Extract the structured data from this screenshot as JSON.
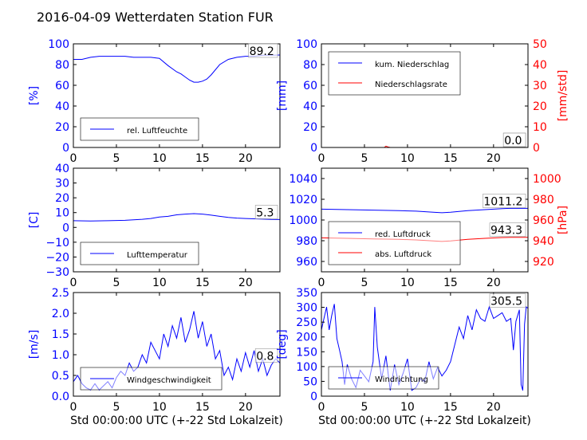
{
  "figure": {
    "title": "2016-04-09 Wetterdaten Station FUR"
  },
  "colors": {
    "series_blue": "#0000ff",
    "series_red": "#ff0000",
    "axis_blue": "#0000ff",
    "axis_red": "#ff0000",
    "text": "#000000",
    "spine": "#000000"
  },
  "chart_data": [
    {
      "id": "humidity",
      "type": "line",
      "xlim": [
        0,
        24
      ],
      "ylim": [
        0,
        100
      ],
      "ylabel": "[%]",
      "xticks": [
        "0",
        "5",
        "10",
        "15",
        "20"
      ],
      "yticks": [
        "0",
        "20",
        "40",
        "60",
        "80",
        "100"
      ],
      "legend": [
        "rel. Luftfeuchte"
      ],
      "legend_position": "bottom-left",
      "last_value_label": "89.2",
      "series": [
        {
          "name": "rel. Luftfeuchte",
          "color": "#0000ff",
          "x": [
            0,
            1,
            2,
            3,
            4,
            5,
            6,
            7,
            8,
            9,
            10,
            11,
            12,
            12.5,
            13,
            13.5,
            14,
            14.5,
            15,
            15.5,
            16,
            17,
            18,
            19,
            20,
            21,
            22,
            23,
            24
          ],
          "y": [
            85,
            85,
            87,
            88,
            88,
            88,
            88,
            87,
            87,
            87,
            86,
            79,
            73,
            71,
            68,
            65,
            63,
            63,
            64,
            66,
            70,
            80,
            85,
            87,
            88,
            88,
            89,
            89,
            89.2
          ]
        }
      ]
    },
    {
      "id": "precipitation",
      "type": "line",
      "xlim": [
        0,
        24
      ],
      "ylim": [
        0,
        100
      ],
      "ylabel": "[mm]",
      "y2lim": [
        0,
        50
      ],
      "y2label": "[mm/std]",
      "xticks": [
        "0",
        "5",
        "10",
        "15",
        "20"
      ],
      "yticks": [
        "0",
        "20",
        "40",
        "60",
        "80",
        "100"
      ],
      "y2ticks": [
        "0",
        "10",
        "20",
        "30",
        "40",
        "50"
      ],
      "legend": [
        "kum. Niederschlag",
        "Niederschlagsrate"
      ],
      "legend_position": "top-left",
      "last_value_label": "0.0",
      "last_value_label_2": "0.0",
      "series": [
        {
          "name": "kum. Niederschlag",
          "color": "#0000ff",
          "axis": "left",
          "x": [
            0,
            24
          ],
          "y": [
            0,
            0
          ]
        },
        {
          "name": "Niederschlagsrate",
          "color": "#ff0000",
          "axis": "right",
          "x": [
            0,
            7.3,
            7.5,
            7.7,
            8,
            24
          ],
          "y": [
            0,
            0,
            0.6,
            0.3,
            0,
            0
          ]
        }
      ]
    },
    {
      "id": "temperature",
      "type": "line",
      "xlim": [
        0,
        24
      ],
      "ylim": [
        -30,
        40
      ],
      "ylabel": "[C]",
      "xticks": [
        "0",
        "5",
        "10",
        "15",
        "20"
      ],
      "yticks": [
        "−30",
        "−20",
        "−10",
        "0",
        "10",
        "20",
        "30",
        "40"
      ],
      "legend": [
        "Lufttemperatur"
      ],
      "legend_position": "bottom-left",
      "last_value_label": "5.3",
      "series": [
        {
          "name": "Lufttemperatur",
          "color": "#0000ff",
          "x": [
            0,
            2,
            4,
            6,
            8,
            9,
            10,
            11,
            12,
            13,
            14,
            15,
            16,
            17,
            18,
            19,
            20,
            21,
            22,
            23,
            24
          ],
          "y": [
            4.5,
            4.3,
            4.5,
            4.8,
            5.5,
            6,
            7,
            7.5,
            8.5,
            9,
            9.3,
            9,
            8.3,
            7.5,
            6.8,
            6.3,
            6,
            5.8,
            5.6,
            5.4,
            5.3
          ]
        }
      ]
    },
    {
      "id": "pressure",
      "type": "line",
      "xlim": [
        0,
        24
      ],
      "ylim": [
        950,
        1050
      ],
      "ylabel": "",
      "y2lim": [
        910,
        1010
      ],
      "y2label": "[hPa]",
      "xticks": [
        "0",
        "5",
        "10",
        "15",
        "20"
      ],
      "yticks": [
        "960",
        "980",
        "1000",
        "1020",
        "1040"
      ],
      "y2ticks": [
        "920",
        "940",
        "960",
        "980",
        "1000"
      ],
      "legend": [
        "red. Luftdruck",
        "abs. Luftdruck"
      ],
      "legend_position": "bottom-left",
      "last_value_label": "1011.2",
      "last_value_label_2": "943.3",
      "series": [
        {
          "name": "red. Luftdruck",
          "color": "#0000ff",
          "axis": "left",
          "x": [
            0,
            3,
            6,
            9,
            11,
            13,
            14,
            15,
            17,
            19,
            21,
            22,
            24
          ],
          "y": [
            1010.5,
            1010,
            1009.5,
            1009,
            1008.5,
            1007.5,
            1007,
            1007.5,
            1009,
            1010,
            1011,
            1011.2,
            1011.2
          ]
        },
        {
          "name": "abs. Luftdruck",
          "color": "#ff0000",
          "axis": "right",
          "x": [
            0,
            3,
            6,
            9,
            11,
            13,
            14,
            15,
            17,
            19,
            21,
            22,
            24
          ],
          "y": [
            942.8,
            942.3,
            941.8,
            941.3,
            940.8,
            939.8,
            939.3,
            939.8,
            941.3,
            942.3,
            943.1,
            943.3,
            943.3
          ]
        }
      ]
    },
    {
      "id": "windspeed",
      "type": "line",
      "xlim": [
        0,
        24
      ],
      "ylim": [
        0,
        2.5
      ],
      "ylabel": "[m/s]",
      "xlabel": "Std 00:00:00 UTC (+-22 Std Lokalzeit)",
      "xticks": [
        "0",
        "5",
        "10",
        "15",
        "20"
      ],
      "yticks": [
        "0.0",
        "0.5",
        "1.0",
        "1.5",
        "2.0",
        "2.5"
      ],
      "legend": [
        "Windgeschwindigkeit"
      ],
      "legend_position": "bottom-center",
      "last_value_label": "0.8",
      "series": [
        {
          "name": "Windgeschwindigkeit",
          "color": "#0000ff",
          "x": [
            0,
            0.5,
            1,
            1.5,
            2,
            2.5,
            3,
            3.5,
            4,
            4.5,
            5,
            5.5,
            6,
            6.5,
            7,
            7.5,
            8,
            8.5,
            9,
            9.5,
            10,
            10.5,
            11,
            11.5,
            12,
            12.5,
            13,
            13.5,
            14,
            14.5,
            15,
            15.5,
            16,
            16.5,
            17,
            17.5,
            18,
            18.5,
            19,
            19.5,
            20,
            20.5,
            21,
            21.5,
            22,
            22.5,
            23,
            23.5,
            24
          ],
          "y": [
            0.35,
            0.5,
            0.3,
            0.2,
            0.15,
            0.3,
            0.15,
            0.25,
            0.35,
            0.2,
            0.45,
            0.6,
            0.5,
            0.8,
            0.6,
            0.7,
            1.0,
            0.8,
            1.3,
            1.1,
            0.9,
            1.5,
            1.2,
            1.7,
            1.4,
            1.9,
            1.3,
            1.6,
            2.05,
            1.4,
            1.8,
            1.2,
            1.5,
            0.9,
            1.1,
            0.5,
            0.7,
            0.4,
            0.9,
            0.6,
            1.05,
            0.7,
            1.1,
            0.6,
            0.9,
            0.5,
            0.75,
            0.9,
            0.8
          ]
        }
      ]
    },
    {
      "id": "winddirection",
      "type": "line",
      "xlim": [
        0,
        24
      ],
      "ylim": [
        0,
        360
      ],
      "ylabel": "[deg]",
      "xlabel": "Std 00:00:00 UTC (+-22 Std Lokalzeit)",
      "xticks": [
        "0",
        "5",
        "10",
        "15",
        "20"
      ],
      "yticks": [
        "0",
        "50",
        "100",
        "150",
        "200",
        "250",
        "300",
        "350"
      ],
      "legend": [
        "Windrichtung"
      ],
      "legend_position": "bottom-left",
      "last_value_label": "305.5",
      "series": [
        {
          "name": "Windrichtung",
          "color": "#0000ff",
          "x": [
            0,
            0.3,
            0.6,
            0.9,
            1.2,
            1.5,
            1.8,
            2.1,
            2.4,
            2.7,
            3,
            3.5,
            4,
            4.5,
            5,
            5.5,
            6,
            6.2,
            6.5,
            7,
            7.5,
            8,
            8.5,
            9,
            9.5,
            10,
            10.5,
            11,
            11.5,
            12,
            12.5,
            13,
            13.5,
            14,
            14.5,
            15,
            15.5,
            16,
            16.5,
            17,
            17.5,
            18,
            18.5,
            19,
            19.5,
            20,
            20.5,
            21,
            21.5,
            22,
            22.3,
            22.6,
            23,
            23.2,
            23.4,
            23.6,
            23.8,
            24
          ],
          "y": [
            230,
            270,
            310,
            230,
            280,
            320,
            200,
            160,
            120,
            40,
            110,
            60,
            30,
            90,
            70,
            50,
            120,
            310,
            170,
            60,
            140,
            20,
            110,
            40,
            80,
            130,
            20,
            30,
            60,
            50,
            120,
            60,
            100,
            70,
            90,
            120,
            180,
            240,
            200,
            280,
            230,
            300,
            270,
            260,
            310,
            270,
            280,
            290,
            260,
            270,
            160,
            260,
            300,
            40,
            20,
            250,
            310,
            305.5
          ]
        }
      ]
    }
  ]
}
